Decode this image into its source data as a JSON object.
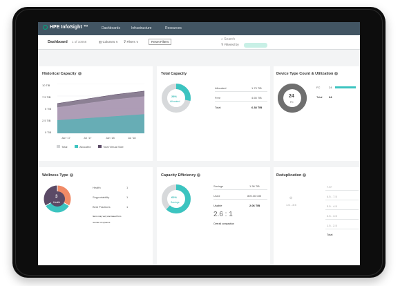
{
  "app": {
    "brand": "HPE InfoSight ™",
    "nav": [
      "Dashboards",
      "Infrastructure",
      "Resources"
    ]
  },
  "subbar": {
    "title": "Dashboard",
    "count": "1 of 10056",
    "columns": "Columns ∨",
    "filters": "Filters ∨",
    "reset": "Reset Filters",
    "search": "Search",
    "filtered_by": "Filtered by"
  },
  "historical": {
    "title": "Historical Capacity",
    "yticks": [
      "10 TiB",
      "7.5 TiB",
      "5 TiB",
      "2.5 TiB",
      "0 TiB"
    ],
    "xticks": [
      "Jan '17",
      "Jul '17",
      "Jan '18",
      "Jul '18"
    ],
    "legend": [
      "Total",
      "Allocated",
      "Total Virtual Size"
    ],
    "colors": {
      "total": "#b9a7c2",
      "allocated": "#5ab0b5",
      "virtual": "#5b4a66"
    },
    "chart_data": {
      "type": "area",
      "x": [
        "Jan '17",
        "Jul '17",
        "Jan '18",
        "Jul '18"
      ],
      "series": [
        {
          "name": "Total Virtual Size",
          "values": [
            6.0,
            6.9,
            7.8,
            8.5
          ]
        },
        {
          "name": "Total",
          "values": [
            5.2,
            6.0,
            6.8,
            7.4
          ]
        },
        {
          "name": "Allocated",
          "values": [
            2.6,
            3.0,
            3.4,
            3.8
          ]
        }
      ],
      "ylim": [
        0,
        10
      ]
    }
  },
  "total_capacity": {
    "title": "Total Capacity",
    "percent": "28%",
    "pct_value": 28,
    "center_label": "Allocated",
    "rows": [
      [
        "Allocated",
        "1.73 TiB"
      ],
      [
        "Free",
        "4.65 TiB"
      ],
      [
        "Total",
        "6.38 TiB"
      ]
    ]
  },
  "device_type": {
    "title": "Device Type Count & Utilization",
    "center_value": "24",
    "center_label": "FC",
    "rows": [
      [
        "FC",
        "24"
      ],
      [
        "Total",
        "24"
      ]
    ],
    "bar_fraction": 1.0
  },
  "wellness": {
    "title": "Wellness Type",
    "center_value": "3",
    "center_label": "Health",
    "rows": [
      [
        "Health",
        "1"
      ],
      [
        "Supportability",
        "1"
      ],
      [
        "Best Practices",
        "1"
      ]
    ],
    "note1": "Items may vary are based from",
    "note2": "number of systems",
    "slices": [
      {
        "value": 1,
        "color": "#f08a66"
      },
      {
        "value": 1,
        "color": "#3cc4c0"
      },
      {
        "value": 1,
        "color": "#5b4a66"
      }
    ]
  },
  "efficiency": {
    "title": "Capacity Efficiency",
    "percent": "62%",
    "pct_value": 62,
    "center_label": "Savings",
    "rows": [
      [
        "Savings",
        "1.36 TiB"
      ],
      [
        "Used",
        "800.36 GiB"
      ],
      [
        "Usable",
        "2.06 TiB"
      ]
    ],
    "ratio": "2.6 : 1",
    "ratio_label": "Overall compaction"
  },
  "dedup": {
    "title": "Deduplication",
    "range": "1.6 - 3.5",
    "scale": [
      "7.5+",
      "4.5 - 7.5",
      "3.5 - 4.5",
      "2.5 - 3.5",
      "1.5 - 2.5"
    ],
    "total_label": "Total"
  },
  "colors": {
    "teal": "#3cc4c0",
    "grey_ring": "#d7d9db",
    "dark_ring": "#6f6f6f",
    "topbar": "#425563"
  }
}
